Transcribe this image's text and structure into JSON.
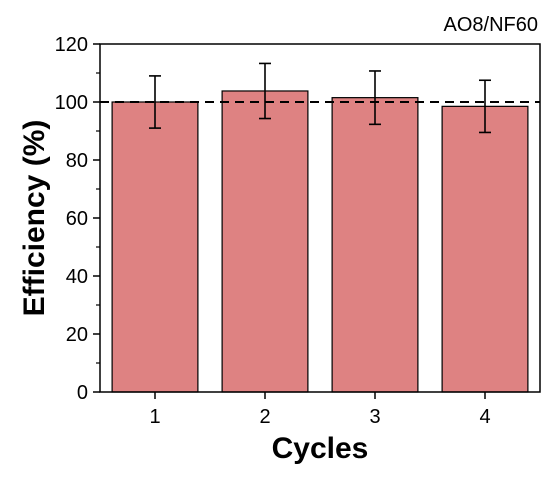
{
  "chart_data": {
    "type": "bar",
    "title": "",
    "annotation": "AO8/NF60",
    "xlabel": "Cycles",
    "ylabel": "Efficiency (%)",
    "categories": [
      "1",
      "2",
      "3",
      "4"
    ],
    "series": [
      {
        "values": [
          100.0,
          103.8,
          101.5,
          98.5
        ],
        "errors": [
          9.0,
          9.5,
          9.2,
          9.0
        ],
        "color": "#de8282"
      }
    ],
    "reference_line": {
      "y": 100,
      "style": "dashed"
    },
    "ylim": [
      0,
      120
    ],
    "yticks": [
      0,
      20,
      40,
      60,
      80,
      100,
      120
    ],
    "y_minor_step": 10,
    "grid": false,
    "legend": "none"
  }
}
